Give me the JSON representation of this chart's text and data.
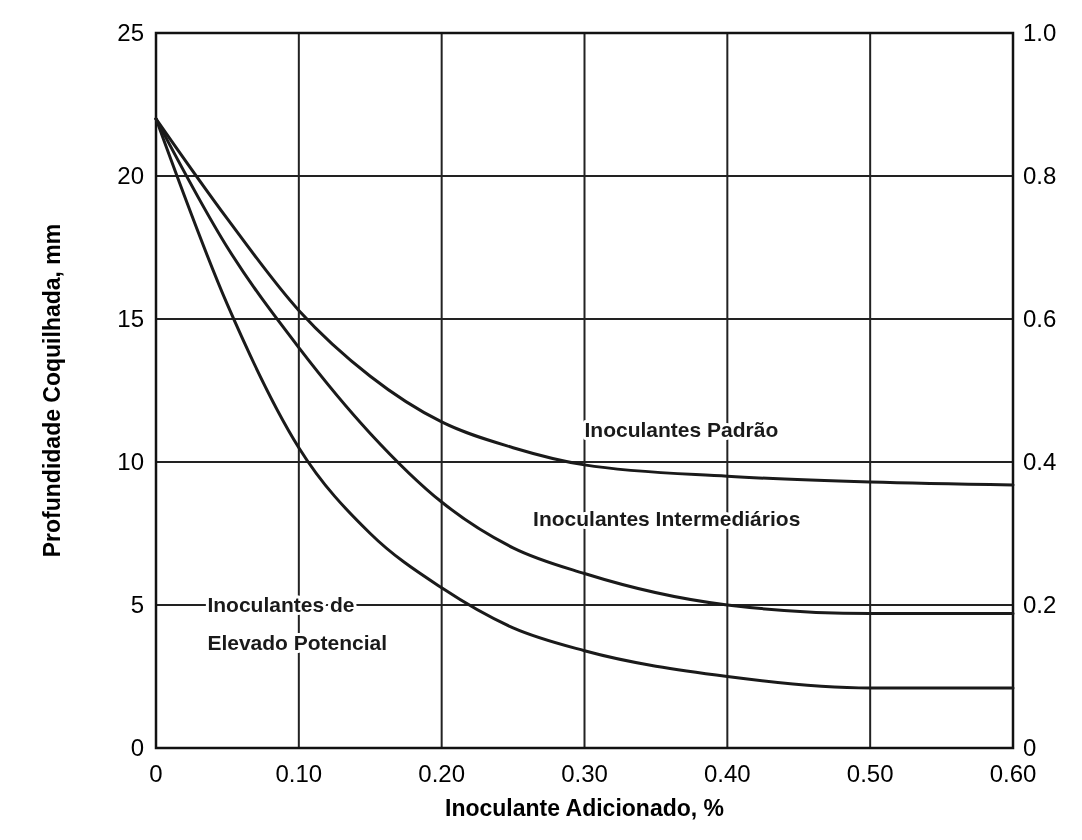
{
  "chart_data": {
    "type": "line",
    "xlabel": "Inoculante  Adicionado, %",
    "ylabel": "Profundidade Coquilhada,  mm",
    "x": [
      0,
      0.05,
      0.1,
      0.15,
      0.2,
      0.25,
      0.3,
      0.4,
      0.5,
      0.6
    ],
    "series": [
      {
        "name": "Inoculantes Padrão",
        "color": "#1a1a1a",
        "values": [
          22,
          18.5,
          15.3,
          13,
          11.4,
          10.5,
          9.9,
          9.5,
          9.3,
          9.2
        ]
      },
      {
        "name": "Inoculantes Intermediários",
        "color": "#1a1a1a",
        "values": [
          22,
          17.5,
          14,
          11,
          8.6,
          7,
          6.1,
          5,
          4.7,
          4.7
        ]
      },
      {
        "name": "Inoculantes de Elevado Potencial",
        "color": "#1a1a1a",
        "values": [
          22,
          15.5,
          10.5,
          7.5,
          5.6,
          4.2,
          3.4,
          2.5,
          2.1,
          2.1
        ]
      }
    ],
    "xlim": [
      0,
      0.6
    ],
    "xticks": [
      0,
      {
        "value": 0.1,
        "label": "0.10"
      },
      {
        "value": 0.2,
        "label": "0.20"
      },
      {
        "value": 0.3,
        "label": "0.30"
      },
      {
        "value": 0.4,
        "label": "0.40"
      },
      {
        "value": 0.5,
        "label": "0.50"
      },
      {
        "value": 0.6,
        "label": "0.60"
      }
    ],
    "ylim": [
      0,
      25
    ],
    "yticks": [
      0,
      5,
      10,
      15,
      20,
      25
    ],
    "y2lim": [
      0,
      1
    ],
    "y2ticks": [
      0,
      0.2,
      0.4,
      0.6,
      0.8,
      {
        "value": 1,
        "label": "1.0"
      }
    ],
    "grid": true,
    "marker": "none",
    "line_style": "solid"
  }
}
